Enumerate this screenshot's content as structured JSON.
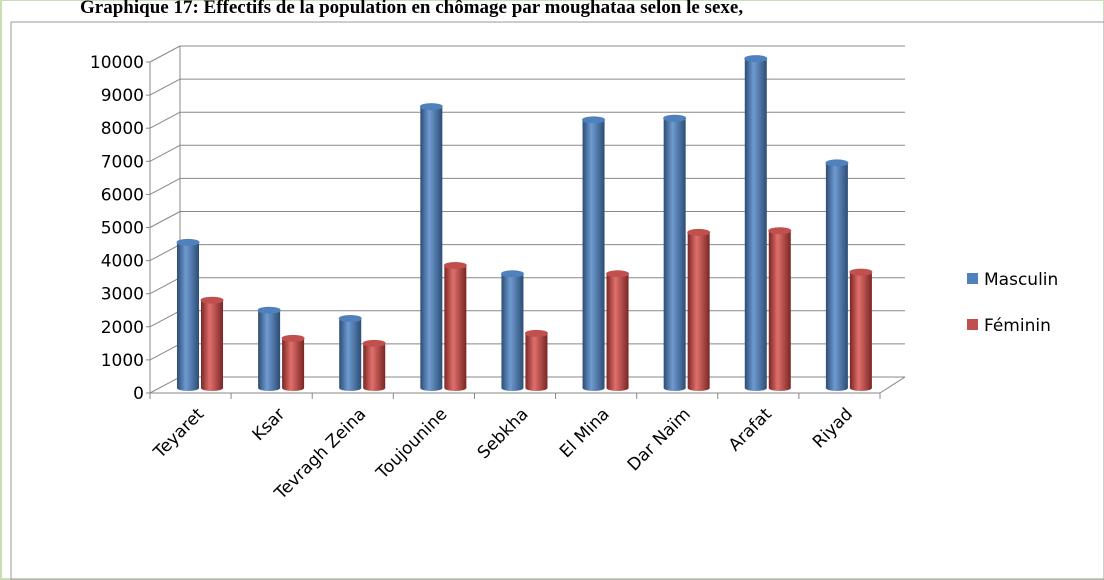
{
  "chart_data": {
    "type": "bar3d",
    "title": "Graphique 17: Effectifs de la population en chômage par moughataa selon le sexe,",
    "categories": [
      "Teyaret",
      "Ksar",
      "Tevragh Zeina",
      "Toujounine",
      "Sebkha",
      "El Mina",
      "Dar Naïm",
      "Arafat",
      "Riyad"
    ],
    "series": [
      {
        "name": "Masculin",
        "color": "#4f81bd",
        "values": [
          4400,
          2350,
          2100,
          8500,
          3450,
          8100,
          8150,
          9950,
          6800
        ]
      },
      {
        "name": "Féminin",
        "color": "#c0504d",
        "values": [
          2650,
          1500,
          1350,
          3700,
          1650,
          3450,
          4700,
          4750,
          3500
        ]
      }
    ],
    "ylim": [
      0,
      10000
    ],
    "yticks": [
      0,
      1000,
      2000,
      3000,
      4000,
      5000,
      6000,
      7000,
      8000,
      9000,
      10000
    ],
    "grid": true,
    "legend": "right"
  }
}
